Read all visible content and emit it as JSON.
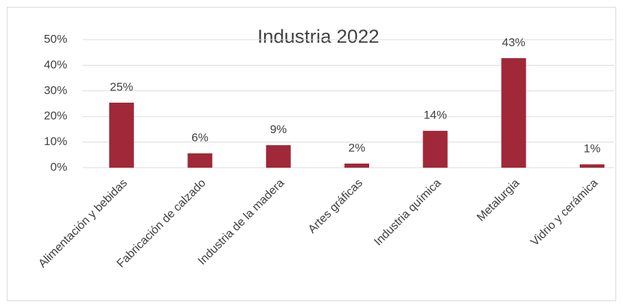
{
  "chart_data": {
    "type": "bar",
    "title": "Industria 2022",
    "categories": [
      "Alimentación y bebidas",
      "Fabricación de calzado",
      "Industria de la madera",
      "Artes gráficas",
      "Industria química",
      "Metalurgia",
      "Vidrio y cerámica"
    ],
    "values": [
      25.4,
      5.6,
      8.8,
      1.6,
      14.4,
      42.8,
      1.3
    ],
    "value_labels": [
      "25%",
      "6%",
      "9%",
      "2%",
      "14%",
      "43%",
      "1%"
    ],
    "color": "#a12838",
    "ylim": [
      0,
      50
    ],
    "yticks": [
      {
        "value": 0,
        "label": "0%"
      },
      {
        "value": 10,
        "label": "10%"
      },
      {
        "value": 20,
        "label": "20%"
      },
      {
        "value": 30,
        "label": "30%"
      },
      {
        "value": 40,
        "label": "40%"
      },
      {
        "value": 50,
        "label": "50%"
      }
    ],
    "grid": true
  }
}
